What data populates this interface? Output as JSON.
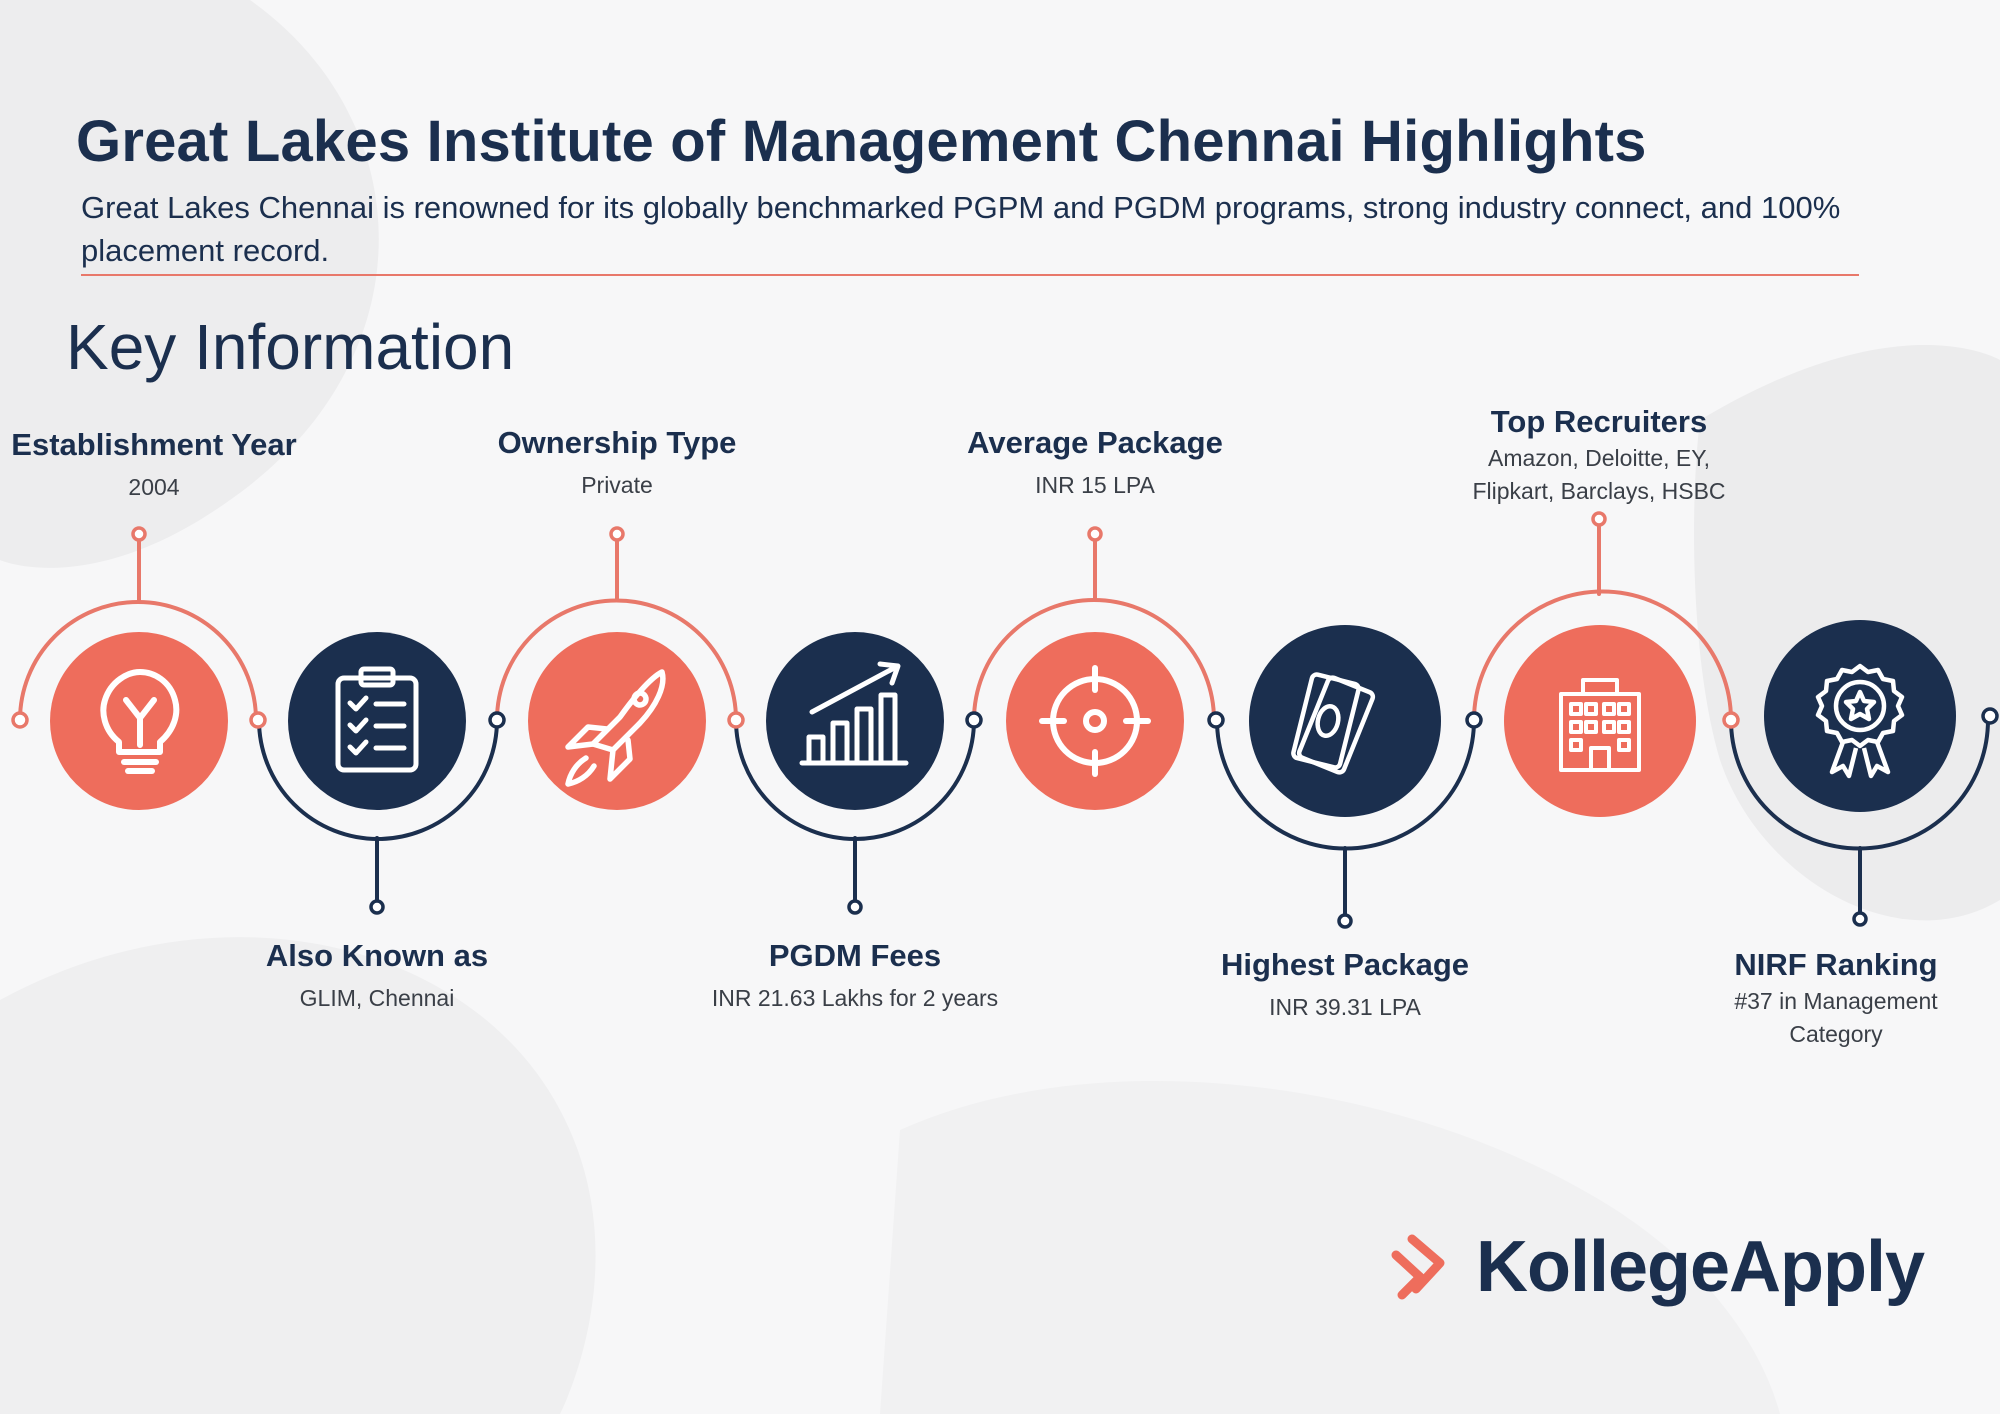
{
  "header": {
    "title": "Great Lakes Institute of Management Chennai Highlights",
    "subtitle": "Great Lakes Chennai is renowned for its globally benchmarked PGPM and PGDM programs, strong industry connect, and 100% placement record."
  },
  "section_title": "Key Information",
  "colors": {
    "navy": "#1b2f4e",
    "coral": "#ee6d5c",
    "coral_line": "#e8786a"
  },
  "timeline": [
    {
      "label": "Establishment Year",
      "value": "2004",
      "icon": "lightbulb-icon",
      "color": "coral"
    },
    {
      "label": "Also Known as",
      "value": "GLIM, Chennai",
      "icon": "clipboard-checklist-icon",
      "color": "navy"
    },
    {
      "label": "Ownership Type",
      "value": "Private",
      "icon": "rocket-icon",
      "color": "coral"
    },
    {
      "label": "PGDM Fees",
      "value": "INR 21.63 Lakhs for 2 years",
      "icon": "growth-chart-icon",
      "color": "navy"
    },
    {
      "label": "Average Package",
      "value": "INR 15 LPA",
      "icon": "target-icon",
      "color": "coral"
    },
    {
      "label": "Highest Package",
      "value": "INR 39.31 LPA",
      "icon": "money-bills-icon",
      "color": "navy"
    },
    {
      "label": "Top Recruiters",
      "value": "Amazon, Deloitte, EY, Flipkart, Barclays, HSBC",
      "icon": "office-building-icon",
      "color": "coral"
    },
    {
      "label": "NIRF Ranking",
      "value": "#37 in Management Category",
      "icon": "award-badge-icon",
      "color": "navy"
    }
  ],
  "logo": {
    "name": "KollegeApply",
    "icon": "chevron-logo-icon"
  }
}
